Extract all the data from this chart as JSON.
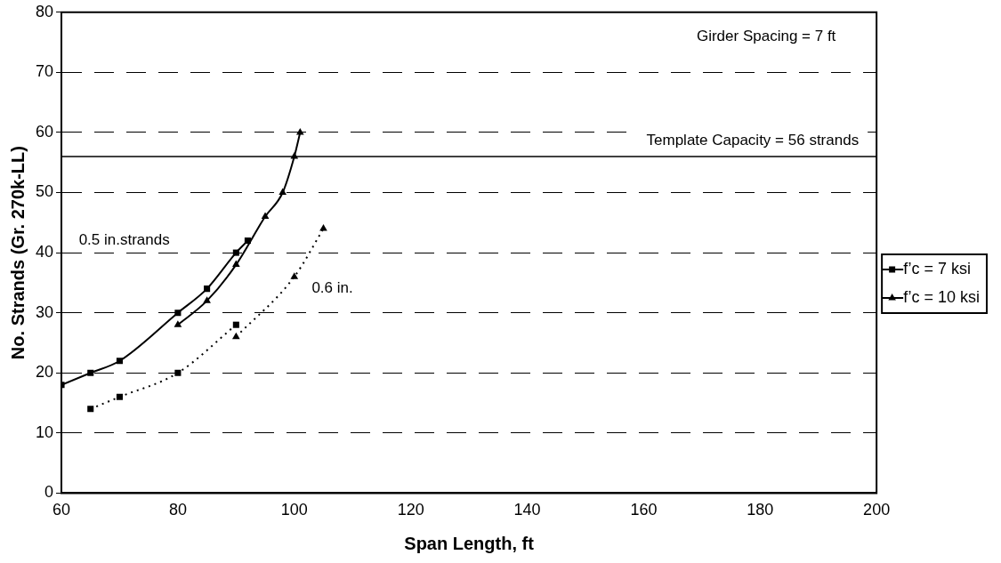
{
  "chart_data": {
    "type": "line",
    "xlabel": "Span Length, ft",
    "ylabel": "No. Strands (Gr. 270k-LL)",
    "xlim": [
      60,
      200
    ],
    "xticks": [
      60,
      80,
      100,
      120,
      140,
      160,
      180,
      200
    ],
    "ylim": [
      0,
      80
    ],
    "yticks": [
      0,
      10,
      20,
      30,
      40,
      50,
      60,
      70,
      80
    ],
    "grid": "y",
    "legend": "right",
    "series": [
      {
        "name": "f’c = 7 ksi",
        "color": "#000000",
        "marker": "square",
        "line_style": "solid",
        "x": [
          60,
          65,
          70,
          80,
          85,
          90,
          92
        ],
        "values": [
          18,
          20,
          22,
          30,
          34,
          40,
          42
        ]
      },
      {
        "name": "f’c = 10 ksi",
        "color": "#000000",
        "marker": "triangle",
        "line_style": "solid",
        "x": [
          80,
          85,
          90,
          95,
          98,
          100,
          101
        ],
        "values": [
          28,
          32,
          38,
          46,
          50,
          56,
          60
        ]
      },
      {
        "color": "#000000",
        "marker": "square",
        "line_style": "dotted",
        "x": [
          65,
          70,
          80,
          90
        ],
        "values": [
          14,
          16,
          20,
          28
        ]
      },
      {
        "color": "#000000",
        "marker": "triangle",
        "line_style": "dotted",
        "x": [
          90,
          100,
          105
        ],
        "values": [
          26,
          36,
          44
        ]
      }
    ],
    "ref_lines": [
      {
        "axis": "y",
        "value": 56,
        "label": "Template Capacity = 56 strands",
        "color": "#000000",
        "line_style": "solid"
      }
    ],
    "annotations": [
      "Girder Spacing = 7 ft",
      "0.5 in.strands",
      "0.6 in."
    ]
  }
}
